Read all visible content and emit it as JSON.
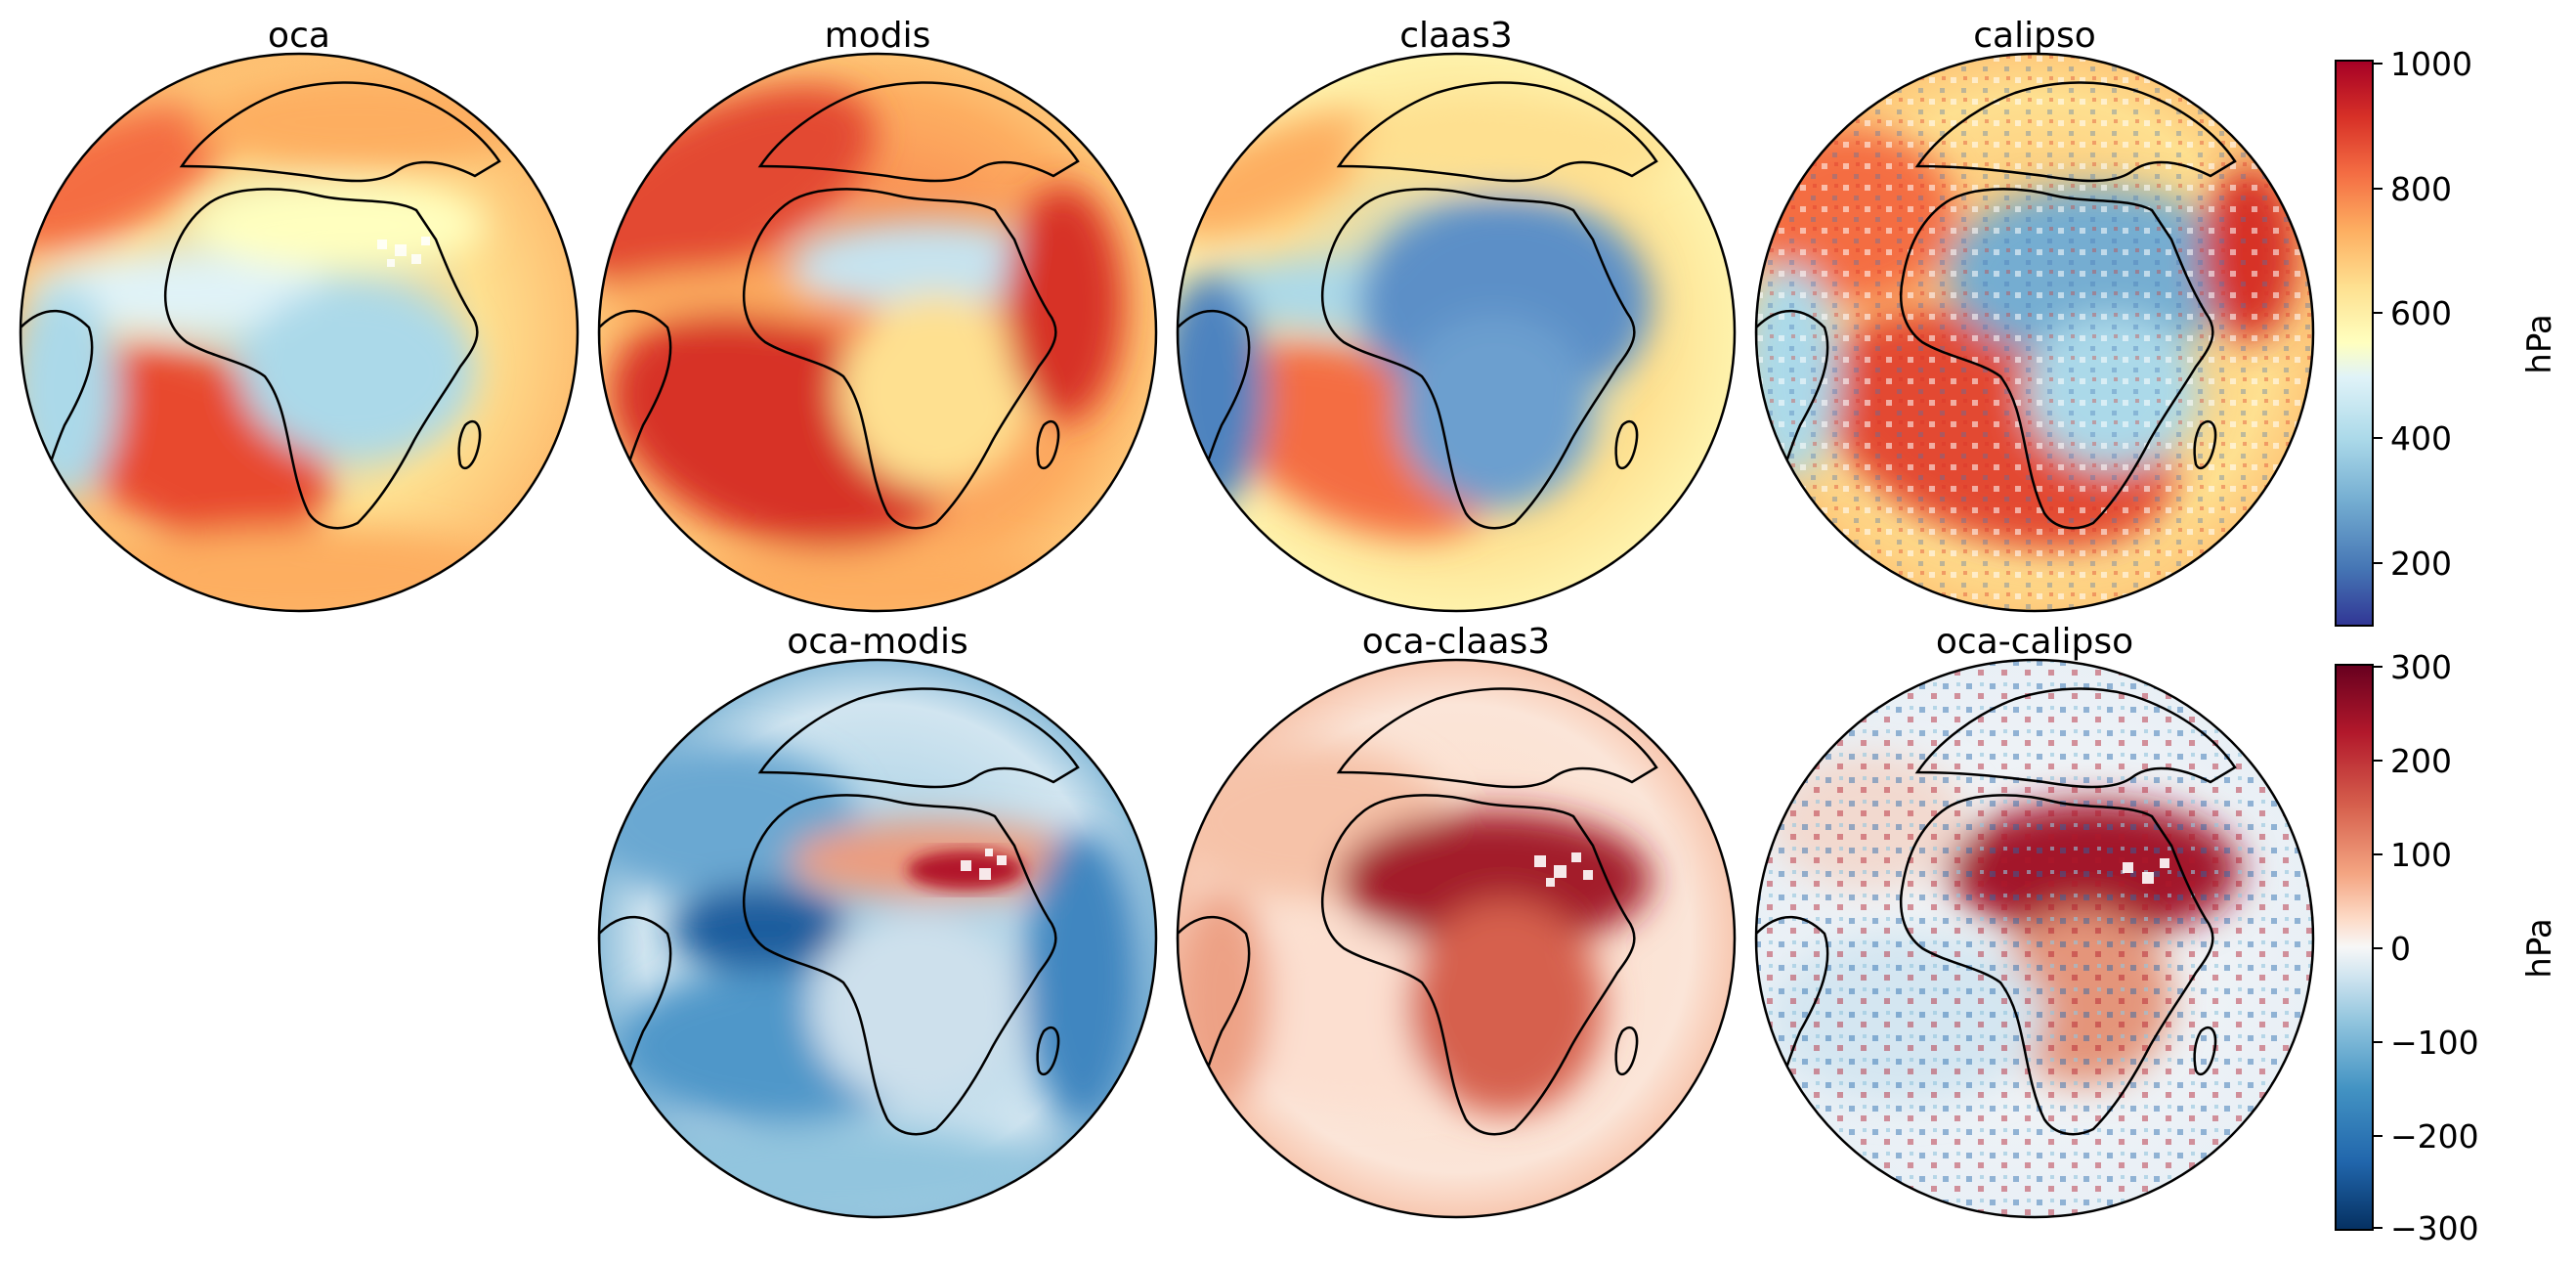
{
  "panels": {
    "oca": "oca",
    "modis": "modis",
    "claas3": "claas3",
    "calipso": "calipso",
    "oca_modis": "oca-modis",
    "oca_claas3": "oca-claas3",
    "oca_calipso": "oca-calipso"
  },
  "colorbar_top": {
    "label": "hPa",
    "ticks": [
      "1000",
      "800",
      "600",
      "400",
      "200"
    ],
    "range": [
      100,
      1000
    ],
    "colormap": "RdYlBu_r"
  },
  "colorbar_bottom": {
    "label": "hPa",
    "ticks": [
      "300",
      "200",
      "100",
      "0",
      "−100",
      "−200",
      "−300"
    ],
    "range": [
      -300,
      300
    ],
    "colormap": "RdBu_r"
  },
  "colors": {
    "dark_red": "#a50026",
    "red": "#d73027",
    "orange": "#f46d43",
    "light_orange": "#fdae61",
    "yellow": "#fee090",
    "pale": "#ffffbf",
    "light_blue": "#e0f3f8",
    "blue": "#abd9e9",
    "mid_blue": "#74add1",
    "deep_blue": "#4575b4",
    "navy": "#313695",
    "div_dark_red": "#67001f",
    "div_red": "#b2182b",
    "div_pink": "#f4a582",
    "div_white": "#f7f7f7",
    "div_lblue": "#92c5de",
    "div_blue": "#2166ac",
    "div_navy": "#053061"
  }
}
